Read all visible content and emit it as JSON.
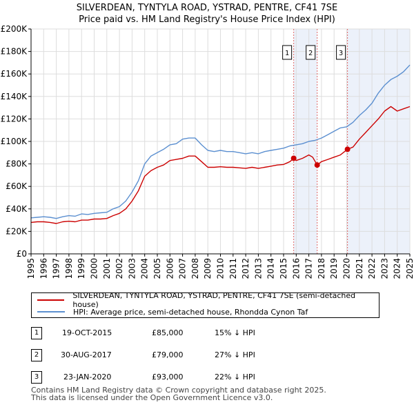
{
  "header": {
    "title_line1": "SILVERDEAN, TYNTYLA ROAD, YSTRAD, PENTRE, CF41 7SE",
    "title_line2": "Price paid vs. HM Land Registry's House Price Index (HPI)"
  },
  "colors": {
    "price_line": "#cc0000",
    "hpi_line": "#5b8fd0",
    "shade": "#dde6f5",
    "marker_line": "#e06666",
    "grid": "#dddddd"
  },
  "legend": {
    "items": [
      {
        "label": "SILVERDEAN, TYNTYLA ROAD, YSTRAD, PENTRE, CF41 7SE (semi-detached house)"
      },
      {
        "label": "HPI: Average price, semi-detached house, Rhondda Cynon Taf"
      }
    ]
  },
  "transactions": [
    {
      "num": "1",
      "date": "19-OCT-2015",
      "price": "£85,000",
      "hpi": "15% ↓ HPI"
    },
    {
      "num": "2",
      "date": "30-AUG-2017",
      "price": "£79,000",
      "hpi": "27% ↓ HPI"
    },
    {
      "num": "3",
      "date": "23-JAN-2020",
      "price": "£93,000",
      "hpi": "22% ↓ HPI"
    }
  ],
  "footer": {
    "line1": "Contains HM Land Registry data © Crown copyright and database right 2025.",
    "line2": "This data is licensed under the Open Government Licence v3.0."
  },
  "chart_data": {
    "type": "line",
    "title": "SILVERDEAN, TYNTYLA ROAD, YSTRAD, PENTRE, CF41 7SE — Price paid vs. HM Land Registry's House Price Index (HPI)",
    "xlabel": "",
    "ylabel": "",
    "xlim": [
      1995,
      2025
    ],
    "ylim": [
      0,
      200000
    ],
    "xticks": [
      "1995",
      "1996",
      "1997",
      "1998",
      "1999",
      "2000",
      "2001",
      "2002",
      "2003",
      "2004",
      "2005",
      "2006",
      "2007",
      "2008",
      "2009",
      "2010",
      "2011",
      "2012",
      "2013",
      "2014",
      "2015",
      "2016",
      "2017",
      "2018",
      "2019",
      "2020",
      "2021",
      "2022",
      "2023",
      "2024",
      "2025"
    ],
    "yticks": [
      {
        "value": 0,
        "label": "£0"
      },
      {
        "value": 20000,
        "label": "£20K"
      },
      {
        "value": 40000,
        "label": "£40K"
      },
      {
        "value": 60000,
        "label": "£60K"
      },
      {
        "value": 80000,
        "label": "£80K"
      },
      {
        "value": 100000,
        "label": "£100K"
      },
      {
        "value": 120000,
        "label": "£120K"
      },
      {
        "value": 140000,
        "label": "£140K"
      },
      {
        "value": 160000,
        "label": "£160K"
      },
      {
        "value": 180000,
        "label": "£180K"
      },
      {
        "value": 200000,
        "label": "£200K"
      }
    ],
    "grid": true,
    "series": [
      {
        "name": "HPI: Average price, semi-detached house, Rhondda Cynon Taf",
        "color": "#5b8fd0",
        "x": [
          1995,
          1995.5,
          1996,
          1996.5,
          1997,
          1997.5,
          1998,
          1998.5,
          1999,
          1999.5,
          2000,
          2000.5,
          2001,
          2001.5,
          2002,
          2002.5,
          2003,
          2003.5,
          2004,
          2004.5,
          2005,
          2005.5,
          2006,
          2006.5,
          2007,
          2007.5,
          2008,
          2008.5,
          2009,
          2009.5,
          2010,
          2010.5,
          2011,
          2011.5,
          2012,
          2012.5,
          2013,
          2013.5,
          2014,
          2014.5,
          2015,
          2015.5,
          2016,
          2016.5,
          2017,
          2017.5,
          2018,
          2018.5,
          2019,
          2019.5,
          2020,
          2020.5,
          2021,
          2021.5,
          2022,
          2022.5,
          2023,
          2023.5,
          2024,
          2024.5,
          2025
        ],
        "y": [
          32000,
          32500,
          33000,
          32500,
          31500,
          33000,
          34000,
          33500,
          35500,
          35000,
          36000,
          36500,
          37000,
          40000,
          42000,
          47000,
          55000,
          65000,
          80000,
          87000,
          90000,
          93000,
          97000,
          98000,
          102000,
          103000,
          103000,
          97000,
          92000,
          91000,
          92000,
          91000,
          91000,
          90000,
          89000,
          90000,
          89000,
          91000,
          92000,
          93000,
          94000,
          96000,
          97000,
          98000,
          100000,
          101000,
          103000,
          106000,
          109000,
          112000,
          113000,
          117000,
          123000,
          128000,
          134000,
          143000,
          150000,
          155000,
          158000,
          162000,
          168000
        ]
      },
      {
        "name": "SILVERDEAN, TYNTYLA ROAD, YSTRAD, PENTRE, CF41 7SE (semi-detached house)",
        "color": "#cc0000",
        "x": [
          1995,
          1995.5,
          1996,
          1996.5,
          1997,
          1997.5,
          1998,
          1998.5,
          1999,
          1999.5,
          2000,
          2000.5,
          2001,
          2001.5,
          2002,
          2002.5,
          2003,
          2003.5,
          2004,
          2004.5,
          2005,
          2005.5,
          2006,
          2006.5,
          2007,
          2007.5,
          2008,
          2008.5,
          2009,
          2009.5,
          2010,
          2010.5,
          2011,
          2011.5,
          2012,
          2012.5,
          2013,
          2013.5,
          2014,
          2014.5,
          2015,
          2015.5,
          2015.8,
          2016,
          2016.5,
          2017,
          2017.3,
          2017.66,
          2018,
          2018.5,
          2019,
          2019.5,
          2020.06,
          2020.5,
          2021,
          2021.5,
          2022,
          2022.5,
          2023,
          2023.5,
          2024,
          2024.5,
          2025
        ],
        "y": [
          28000,
          28500,
          28500,
          28000,
          27000,
          28500,
          29000,
          28500,
          30000,
          30000,
          31000,
          31000,
          31500,
          34000,
          36000,
          40000,
          47000,
          56000,
          69000,
          74000,
          77000,
          79000,
          83000,
          84000,
          85000,
          87000,
          87000,
          82000,
          77000,
          77000,
          77500,
          77000,
          77000,
          76500,
          76000,
          77000,
          76000,
          77000,
          78000,
          79000,
          79500,
          82000,
          85000,
          83000,
          85000,
          88000,
          86000,
          79000,
          82000,
          84000,
          86000,
          88000,
          93000,
          95000,
          102000,
          108000,
          114000,
          120000,
          127000,
          131000,
          127000,
          129000,
          131000
        ]
      }
    ],
    "shaded_regions": [
      {
        "from": 2015.8,
        "to": 2017.66
      },
      {
        "from": 2020.06,
        "to": 2025
      }
    ],
    "annotations": [
      {
        "label": "1",
        "x": 2015.8,
        "y": 85000
      },
      {
        "label": "2",
        "x": 2017.66,
        "y": 79000
      },
      {
        "label": "3",
        "x": 2020.06,
        "y": 93000
      }
    ]
  }
}
